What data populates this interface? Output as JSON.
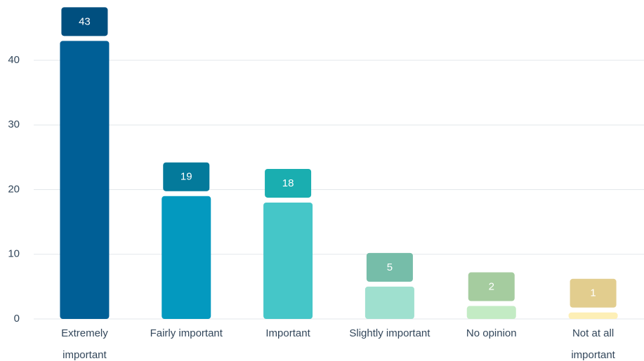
{
  "chart_data": {
    "type": "bar",
    "categories": [
      "Extremely\nimportant",
      "Fairly important",
      "Important",
      "Slightly important",
      "No opinion",
      "Not at all\nimportant"
    ],
    "values": [
      43,
      19,
      18,
      5,
      2,
      1
    ],
    "colors": [
      "#005f96",
      "#0399bf",
      "#45c6c8",
      "#9fe0cf",
      "#c3ebc4",
      "#fdefb6"
    ],
    "label_colors": [
      "#004f7f",
      "#047a9b",
      "#1aaeb0",
      "#76bda9",
      "#a5cc9f",
      "#e2cd8e"
    ],
    "ylim": [
      0,
      48
    ],
    "yticks": [
      0,
      10,
      20,
      30,
      40
    ],
    "grid": true
  }
}
